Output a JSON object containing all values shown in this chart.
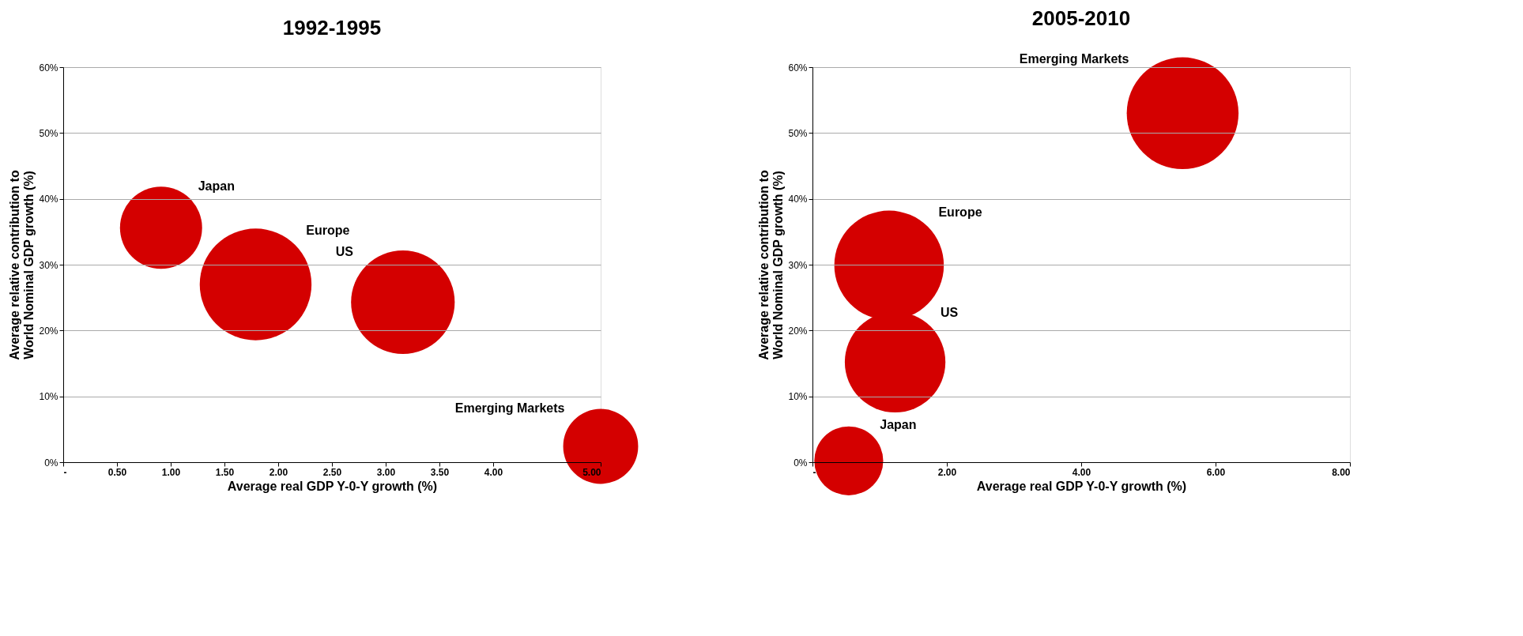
{
  "chart_data": [
    {
      "type": "bubble",
      "title": "1992-1995",
      "xlabel": "Average real GDP Y-0-Y growth (%)",
      "ylabel": "Average relative contribution to\nWorld Nominal GDP growth (%)",
      "xlim": [
        0,
        5
      ],
      "xticks": [
        {
          "value": 0,
          "label": "-"
        },
        {
          "value": 0.5,
          "label": "0.50"
        },
        {
          "value": 1,
          "label": "1.00"
        },
        {
          "value": 1.5,
          "label": "1.50"
        },
        {
          "value": 2,
          "label": "2.00"
        },
        {
          "value": 2.5,
          "label": "2.50"
        },
        {
          "value": 3,
          "label": "3.00"
        },
        {
          "value": 3.5,
          "label": "3.50"
        },
        {
          "value": 4,
          "label": "4.00"
        },
        {
          "value": 5,
          "label": "5.00"
        }
      ],
      "ylim": [
        0,
        60
      ],
      "yticks": [
        {
          "value": 0,
          "label": "0%"
        },
        {
          "value": 10,
          "label": "10%"
        },
        {
          "value": 20,
          "label": "20%"
        },
        {
          "value": 30,
          "label": "30%"
        },
        {
          "value": 40,
          "label": "40%"
        },
        {
          "value": 50,
          "label": "50%"
        },
        {
          "value": 60,
          "label": "60%"
        }
      ],
      "grid": "y",
      "legend": false,
      "series": [
        {
          "name": "Japan",
          "color": "#d40000",
          "x": [
            0.91
          ],
          "values": [
            35.6
          ],
          "sizes": [
            0.54
          ]
        },
        {
          "name": "Europe",
          "color": "#d40000",
          "x": [
            1.79
          ],
          "values": [
            27.0
          ],
          "sizes": [
            1
          ]
        },
        {
          "name": "US",
          "color": "#d40000",
          "x": [
            3.16
          ],
          "values": [
            24.3
          ],
          "sizes": [
            0.86
          ]
        },
        {
          "name": "Emerging Markets",
          "color": "#d40000",
          "x": [
            5.0
          ],
          "values": [
            2.4
          ],
          "sizes": [
            0.45
          ]
        }
      ]
    },
    {
      "type": "bubble",
      "title": "2005-2010",
      "xlabel": "Average real GDP Y-0-Y growth (%)",
      "ylabel": "Average relative contribution to\nWorld Nominal GDP growth (%)",
      "xlim": [
        0,
        8
      ],
      "xticks": [
        {
          "value": 0,
          "label": "-"
        },
        {
          "value": 2,
          "label": "2.00"
        },
        {
          "value": 4,
          "label": "4.00"
        },
        {
          "value": 6,
          "label": "6.00"
        },
        {
          "value": 8,
          "label": "8.00"
        }
      ],
      "ylim": [
        0,
        60
      ],
      "yticks": [
        {
          "value": 0,
          "label": "0%"
        },
        {
          "value": 10,
          "label": "10%"
        },
        {
          "value": 20,
          "label": "20%"
        },
        {
          "value": 30,
          "label": "30%"
        },
        {
          "value": 40,
          "label": "40%"
        },
        {
          "value": 50,
          "label": "50%"
        },
        {
          "value": 60,
          "label": "60%"
        }
      ],
      "grid": "y",
      "legend": false,
      "series": [
        {
          "name": "Emerging Markets",
          "color": "#d40000",
          "x": [
            5.51
          ],
          "values": [
            53.0
          ],
          "sizes": [
            1
          ]
        },
        {
          "name": "Europe",
          "color": "#d40000",
          "x": [
            1.14
          ],
          "values": [
            29.9
          ],
          "sizes": [
            0.96
          ]
        },
        {
          "name": "US",
          "color": "#d40000",
          "x": [
            1.23
          ],
          "values": [
            15.2
          ],
          "sizes": [
            0.81
          ]
        },
        {
          "name": "Japan",
          "color": "#d40000",
          "x": [
            0.54
          ],
          "values": [
            0.2
          ],
          "sizes": [
            0.38
          ]
        }
      ]
    }
  ]
}
